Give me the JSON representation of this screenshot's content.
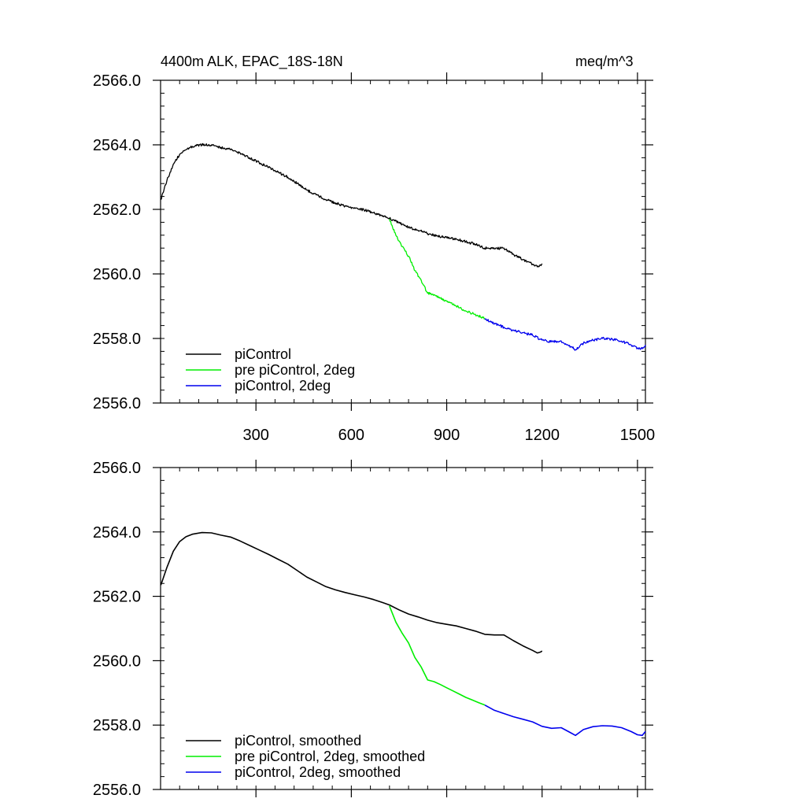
{
  "chart_data": [
    {
      "type": "line",
      "title_left": "4400m ALK, EPAC_18S-18N",
      "title_right": "meq/m^3",
      "xlabel": "",
      "ylabel": "",
      "xlim": [
        0,
        1525
      ],
      "ylim": [
        2556.0,
        2566.0
      ],
      "x_ticks": [
        300,
        600,
        900,
        1200,
        1500
      ],
      "x_tick_labels": [
        "300",
        "600",
        "900",
        "1200",
        "1500"
      ],
      "y_ticks": [
        2556.0,
        2558.0,
        2560.0,
        2562.0,
        2564.0,
        2566.0
      ],
      "y_tick_labels": [
        "2556.0",
        "2558.0",
        "2560.0",
        "2562.0",
        "2564.0",
        "2566.0"
      ],
      "grid": false,
      "legend_position": "bottom-left",
      "series": [
        {
          "name": "piControl",
          "color": "#000000",
          "x": [
            1,
            20,
            40,
            60,
            80,
            100,
            130,
            160,
            190,
            220,
            250,
            280,
            310,
            340,
            370,
            400,
            430,
            460,
            490,
            520,
            550,
            580,
            610,
            640,
            670,
            700,
            720,
            750,
            780,
            810,
            840,
            870,
            900,
            930,
            960,
            990,
            1020,
            1050,
            1080,
            1110,
            1140,
            1170,
            1185,
            1195,
            1200
          ],
          "y": [
            2562.3,
            2562.9,
            2563.4,
            2563.7,
            2563.85,
            2563.95,
            2564.0,
            2564.0,
            2563.92,
            2563.85,
            2563.75,
            2563.6,
            2563.45,
            2563.3,
            2563.15,
            2563.0,
            2562.8,
            2562.6,
            2562.45,
            2562.3,
            2562.2,
            2562.1,
            2562.05,
            2561.98,
            2561.9,
            2561.8,
            2561.72,
            2561.58,
            2561.45,
            2561.35,
            2561.25,
            2561.18,
            2561.12,
            2561.08,
            2561.0,
            2560.92,
            2560.8,
            2560.78,
            2560.8,
            2560.6,
            2560.45,
            2560.3,
            2560.22,
            2560.28,
            2560.32
          ]
        },
        {
          "name": "pre piControl, 2deg",
          "color": "#00ee00",
          "x": [
            720,
            740,
            760,
            780,
            800,
            820,
            840,
            860,
            880,
            900,
            920,
            940,
            960,
            980,
            1000,
            1020
          ],
          "y": [
            2561.7,
            2561.2,
            2560.85,
            2560.55,
            2560.1,
            2559.8,
            2559.4,
            2559.35,
            2559.25,
            2559.15,
            2559.05,
            2558.95,
            2558.85,
            2558.78,
            2558.7,
            2558.62
          ]
        },
        {
          "name": "piControl, 2deg",
          "color": "#0000ee",
          "x": [
            1020,
            1050,
            1080,
            1110,
            1140,
            1170,
            1200,
            1230,
            1260,
            1290,
            1305,
            1330,
            1360,
            1390,
            1420,
            1450,
            1480,
            1500,
            1515,
            1525
          ],
          "y": [
            2558.62,
            2558.45,
            2558.35,
            2558.25,
            2558.18,
            2558.1,
            2557.95,
            2557.9,
            2557.92,
            2557.75,
            2557.65,
            2557.85,
            2557.95,
            2558.0,
            2557.98,
            2557.92,
            2557.8,
            2557.7,
            2557.68,
            2557.8
          ]
        }
      ]
    },
    {
      "type": "line",
      "title_left": "",
      "title_right": "",
      "xlabel": "",
      "ylabel": "",
      "xlim": [
        0,
        1525
      ],
      "ylim": [
        2556.0,
        2566.0
      ],
      "x_ticks": [
        300,
        600,
        900,
        1200,
        1500
      ],
      "x_tick_labels": [],
      "y_ticks": [
        2556.0,
        2558.0,
        2560.0,
        2562.0,
        2564.0,
        2566.0
      ],
      "y_tick_labels": [
        "2556.0",
        "2558.0",
        "2560.0",
        "2562.0",
        "2564.0",
        "2566.0"
      ],
      "grid": false,
      "legend_position": "bottom-left",
      "series": [
        {
          "name": "piControl, smoothed",
          "color": "#000000",
          "x": [
            1,
            20,
            40,
            60,
            80,
            100,
            130,
            160,
            190,
            220,
            250,
            280,
            310,
            340,
            370,
            400,
            430,
            460,
            490,
            520,
            550,
            580,
            610,
            640,
            670,
            700,
            720,
            750,
            780,
            810,
            840,
            870,
            900,
            930,
            960,
            990,
            1020,
            1050,
            1080,
            1110,
            1140,
            1170,
            1185,
            1195,
            1200
          ],
          "y": [
            2562.35,
            2562.9,
            2563.4,
            2563.7,
            2563.85,
            2563.93,
            2563.98,
            2563.97,
            2563.9,
            2563.84,
            2563.72,
            2563.58,
            2563.44,
            2563.3,
            2563.15,
            2563.0,
            2562.8,
            2562.6,
            2562.45,
            2562.3,
            2562.2,
            2562.12,
            2562.05,
            2561.98,
            2561.9,
            2561.8,
            2561.73,
            2561.58,
            2561.45,
            2561.36,
            2561.26,
            2561.18,
            2561.13,
            2561.08,
            2561.0,
            2560.92,
            2560.82,
            2560.8,
            2560.8,
            2560.62,
            2560.46,
            2560.32,
            2560.24,
            2560.27,
            2560.3
          ]
        },
        {
          "name": "pre piControl, 2deg, smoothed",
          "color": "#00ee00",
          "x": [
            720,
            740,
            760,
            780,
            800,
            820,
            840,
            860,
            880,
            900,
            920,
            940,
            960,
            980,
            1000,
            1020
          ],
          "y": [
            2561.7,
            2561.2,
            2560.85,
            2560.55,
            2560.1,
            2559.8,
            2559.4,
            2559.35,
            2559.26,
            2559.16,
            2559.06,
            2558.96,
            2558.86,
            2558.78,
            2558.7,
            2558.62
          ]
        },
        {
          "name": "piControl, 2deg, smoothed",
          "color": "#0000ee",
          "x": [
            1020,
            1050,
            1080,
            1110,
            1140,
            1170,
            1200,
            1230,
            1260,
            1290,
            1305,
            1330,
            1360,
            1390,
            1420,
            1450,
            1480,
            1500,
            1515,
            1525
          ],
          "y": [
            2558.62,
            2558.46,
            2558.36,
            2558.26,
            2558.18,
            2558.1,
            2557.96,
            2557.9,
            2557.92,
            2557.76,
            2557.68,
            2557.86,
            2557.95,
            2557.98,
            2557.97,
            2557.92,
            2557.8,
            2557.7,
            2557.68,
            2557.8
          ]
        }
      ]
    }
  ]
}
